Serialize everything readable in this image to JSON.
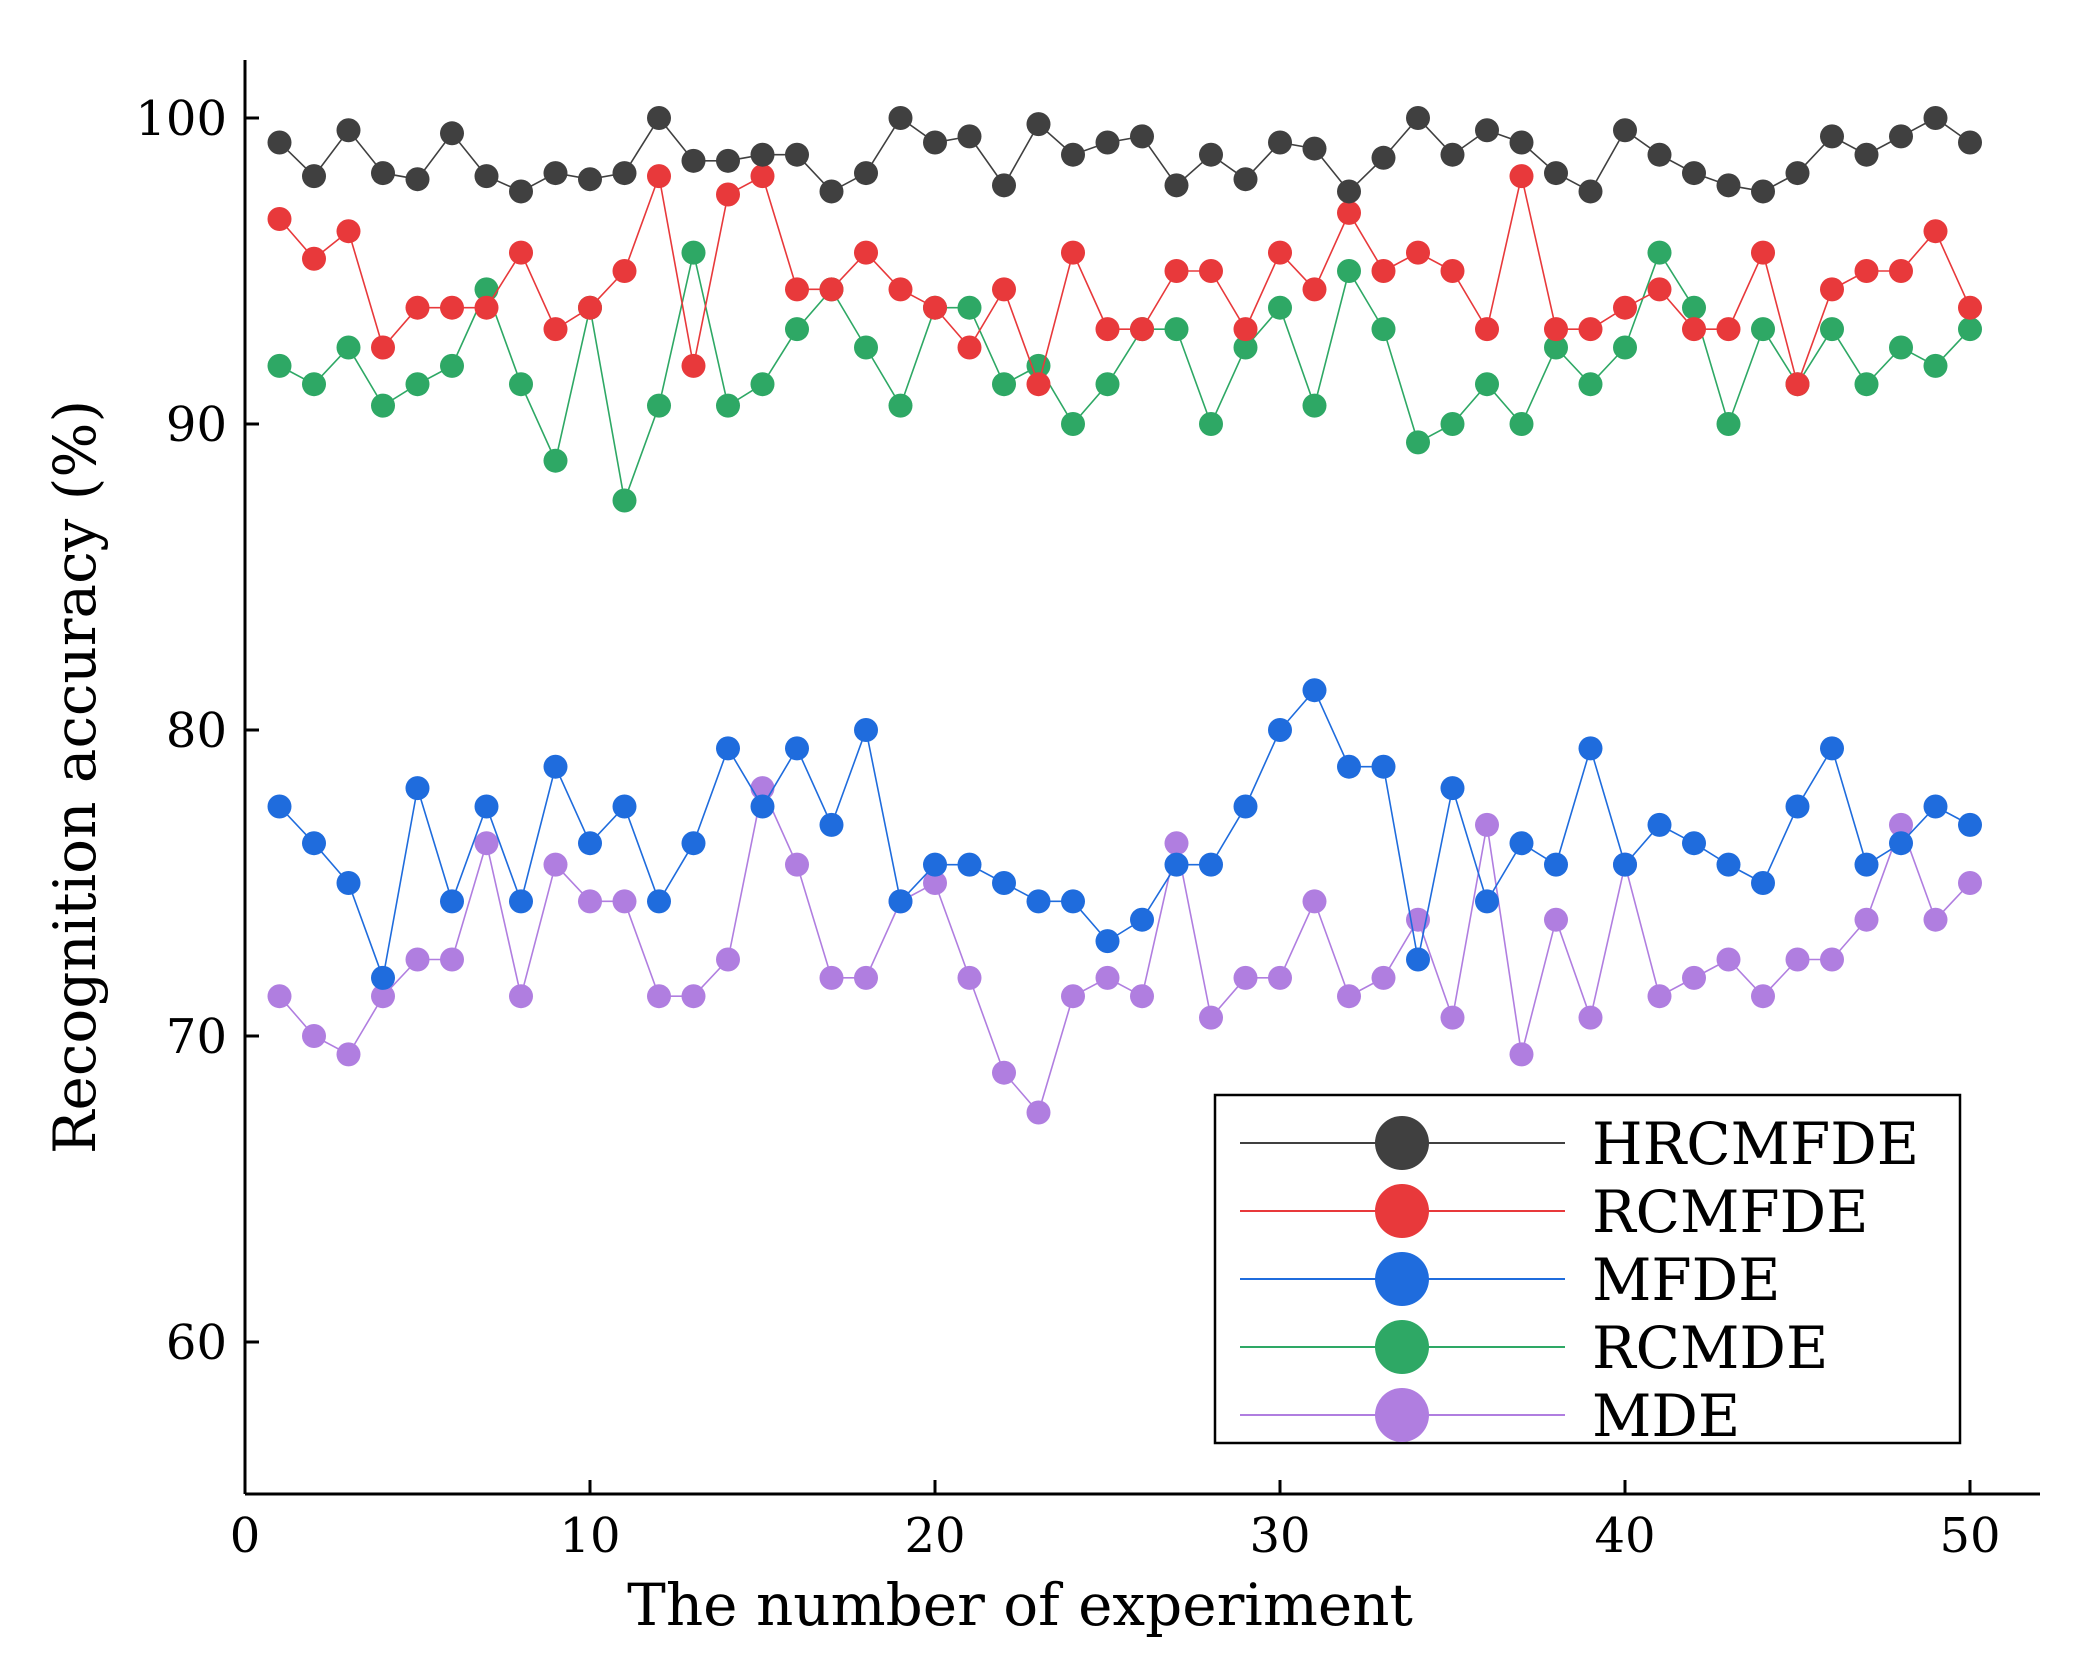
{
  "chart_data": {
    "type": "line",
    "title": "",
    "xlabel": "The number of experiment",
    "ylabel": "Recognition accuracy (%)",
    "xlim": [
      0,
      52
    ],
    "ylim": [
      55,
      102
    ],
    "xticks": [
      0,
      10,
      20,
      30,
      40,
      50
    ],
    "yticks": [
      60,
      70,
      80,
      90,
      100
    ],
    "xtick_labels": [
      "0",
      "10",
      "20",
      "30",
      "40",
      "50"
    ],
    "ytick_labels": [
      "60",
      "70",
      "80",
      "90",
      "100"
    ],
    "grid": false,
    "legend_position": "bottom-right",
    "x": [
      1,
      2,
      3,
      4,
      5,
      6,
      7,
      8,
      9,
      10,
      11,
      12,
      13,
      14,
      15,
      16,
      17,
      18,
      19,
      20,
      21,
      22,
      23,
      24,
      25,
      26,
      27,
      28,
      29,
      30,
      31,
      32,
      33,
      34,
      35,
      36,
      37,
      38,
      39,
      40,
      41,
      42,
      43,
      44,
      45,
      46,
      47,
      48,
      49,
      50
    ],
    "series": [
      {
        "name": "HRCMFDE",
        "color": "#404040",
        "values": [
          99.2,
          98.1,
          99.6,
          98.2,
          98.0,
          99.5,
          98.1,
          97.6,
          98.2,
          98.0,
          98.2,
          100.0,
          98.6,
          98.6,
          98.8,
          98.8,
          97.6,
          98.2,
          100.0,
          99.2,
          99.4,
          97.8,
          99.8,
          98.8,
          99.2,
          99.4,
          97.8,
          98.8,
          98.0,
          99.2,
          99.0,
          97.6,
          98.7,
          100.0,
          98.8,
          99.6,
          99.2,
          98.2,
          97.6,
          99.6,
          98.8,
          98.2,
          97.8,
          97.6,
          98.2,
          99.4,
          98.8,
          99.4,
          100.0,
          99.2
        ]
      },
      {
        "name": "RCMFDE",
        "color": "#e8393b",
        "values": [
          96.7,
          95.4,
          96.3,
          92.5,
          93.8,
          93.8,
          93.8,
          95.6,
          93.1,
          93.8,
          95.0,
          98.1,
          91.9,
          97.5,
          98.1,
          94.4,
          94.4,
          95.6,
          94.4,
          93.8,
          92.5,
          94.4,
          91.3,
          95.6,
          93.1,
          93.1,
          95.0,
          95.0,
          93.1,
          95.6,
          94.4,
          96.9,
          95.0,
          95.6,
          95.0,
          93.1,
          98.1,
          93.1,
          93.1,
          93.8,
          94.4,
          93.1,
          93.1,
          95.6,
          91.3,
          94.4,
          95.0,
          95.0,
          96.3,
          93.8
        ]
      },
      {
        "name": "MFDE",
        "color": "#1f6cdd",
        "values": [
          77.5,
          76.3,
          75.0,
          71.9,
          78.1,
          74.4,
          77.5,
          74.4,
          78.8,
          76.3,
          77.5,
          74.4,
          76.3,
          79.4,
          77.5,
          79.4,
          76.9,
          80.0,
          74.4,
          75.6,
          75.6,
          75.0,
          74.4,
          74.4,
          73.1,
          73.8,
          75.6,
          75.6,
          77.5,
          80.0,
          81.3,
          78.8,
          78.8,
          72.5,
          78.1,
          74.4,
          76.3,
          75.6,
          79.4,
          75.6,
          76.9,
          76.3,
          75.6,
          75.0,
          77.5,
          79.4,
          75.6,
          76.3,
          77.5,
          76.9
        ]
      },
      {
        "name": "RCMDE",
        "color": "#2ea865",
        "values": [
          91.9,
          91.3,
          92.5,
          90.6,
          91.3,
          91.9,
          94.4,
          91.3,
          88.8,
          93.8,
          87.5,
          90.6,
          95.6,
          90.6,
          91.3,
          93.1,
          94.4,
          92.5,
          90.6,
          93.8,
          93.8,
          91.3,
          91.9,
          90.0,
          91.3,
          93.1,
          93.1,
          90.0,
          92.5,
          93.8,
          90.6,
          95.0,
          93.1,
          89.4,
          90.0,
          91.3,
          90.0,
          92.5,
          91.3,
          92.5,
          95.6,
          93.8,
          90.0,
          93.1,
          91.3,
          93.1,
          91.3,
          92.5,
          91.9,
          93.1
        ]
      },
      {
        "name": "MDE",
        "color": "#b07ee0",
        "values": [
          71.3,
          70.0,
          69.4,
          71.3,
          72.5,
          72.5,
          76.3,
          71.3,
          75.6,
          74.4,
          74.4,
          71.3,
          71.3,
          72.5,
          78.1,
          75.6,
          71.9,
          71.9,
          74.4,
          75.0,
          71.9,
          68.8,
          67.5,
          71.3,
          71.9,
          71.3,
          76.3,
          70.6,
          71.9,
          71.9,
          74.4,
          71.3,
          71.9,
          73.8,
          70.6,
          76.9,
          69.4,
          73.8,
          70.6,
          75.6,
          71.3,
          71.9,
          72.5,
          71.3,
          72.5,
          72.5,
          73.8,
          76.9,
          73.8,
          75.0
        ]
      }
    ]
  }
}
